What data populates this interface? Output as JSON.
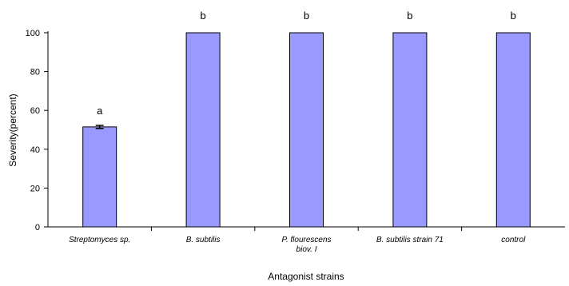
{
  "chart_data": {
    "type": "bar",
    "categories": [
      [
        "Streptomyces sp."
      ],
      [
        "B. subtilis"
      ],
      [
        "P. flourescens",
        "biov. I"
      ],
      [
        "B. subtilis strain 71"
      ],
      [
        "control"
      ]
    ],
    "values": [
      51.5,
      100,
      100,
      100,
      100
    ],
    "error": [
      0.8,
      0,
      0,
      0,
      0
    ],
    "significance_letters": [
      "a",
      "b",
      "b",
      "b",
      "b"
    ],
    "ylabel": "Severity(percent)",
    "xlabel": "Antagonist strains",
    "ylim": [
      0,
      100
    ],
    "yticks": [
      0,
      20,
      40,
      60,
      80,
      100
    ],
    "bar_color": "#9999ff",
    "bar_edge_color": "#000000",
    "grid": false
  }
}
